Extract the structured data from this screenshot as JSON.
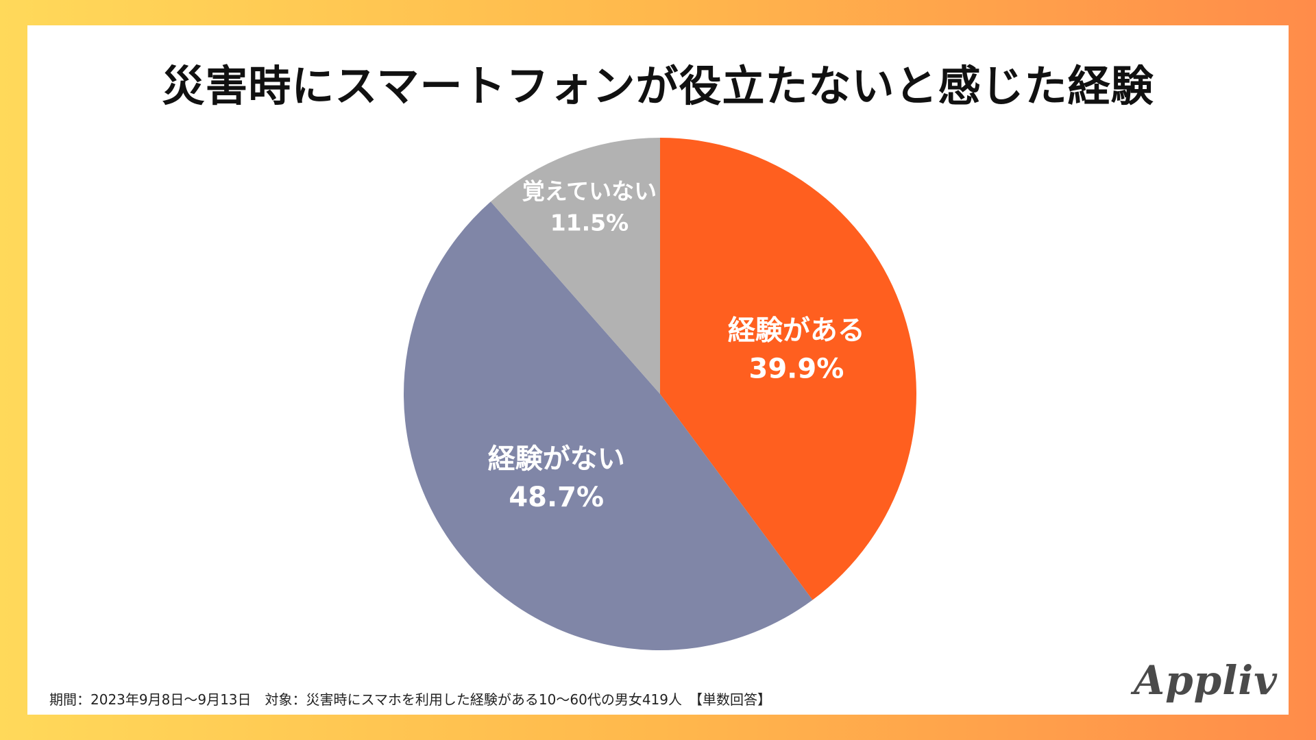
{
  "title": "災害時にスマートフォンが役立たないと感じた経験",
  "chart_data": {
    "type": "pie",
    "slices": [
      {
        "label": "経験がある",
        "value": 39.9,
        "display": "39.9%",
        "color": "#FF5F1F"
      },
      {
        "label": "経験がない",
        "value": 48.7,
        "display": "48.7%",
        "color": "#8086A7"
      },
      {
        "label": "覚えていない",
        "value": 11.5,
        "display": "11.5%",
        "color": "#B2B2B2"
      }
    ],
    "start": "12 o'clock",
    "direction": "clockwise"
  },
  "footnote": "期間：2023年9月8日〜9月13日　対象：災害時にスマホを利用した経験がある10〜60代の男女419人　【単数回答】",
  "logo_text": "Appliv"
}
